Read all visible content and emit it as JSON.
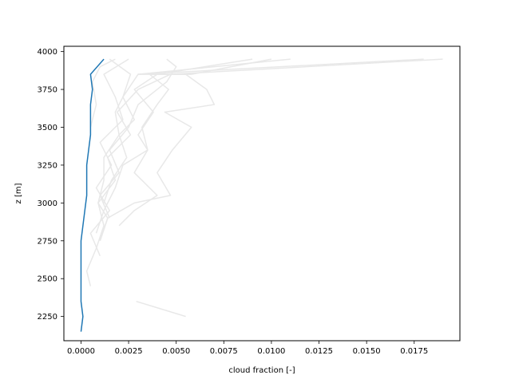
{
  "chart_data": {
    "type": "line",
    "title": "",
    "xlabel": "cloud fraction [-]",
    "ylabel": "z [m]",
    "xlim": [
      -0.0009,
      0.0199
    ],
    "ylim": [
      2090,
      4035
    ],
    "xticks": [
      0.0,
      0.0025,
      0.005,
      0.0075,
      0.01,
      0.0125,
      0.015,
      0.0175
    ],
    "xtick_labels": [
      "0.0000",
      "0.0025",
      "0.0050",
      "0.0075",
      "0.0100",
      "0.0125",
      "0.0150",
      "0.0175"
    ],
    "yticks": [
      2250,
      2500,
      2750,
      3000,
      3250,
      3500,
      3750,
      4000
    ],
    "ytick_labels": [
      "2250",
      "2500",
      "2750",
      "3000",
      "3250",
      "3500",
      "3750",
      "4000"
    ],
    "grid": false,
    "legend": "none",
    "colors": {
      "mean": "#1f77b4",
      "members": "#e8e8e8"
    },
    "series": [
      {
        "role": "member",
        "points": [
          [
            0.0055,
            2250
          ],
          [
            0.0029,
            2350
          ]
        ]
      },
      {
        "role": "member",
        "points": [
          [
            0.0005,
            2450
          ],
          [
            0.0003,
            2550
          ],
          [
            0.0008,
            2700
          ],
          [
            0.0012,
            2850
          ],
          [
            0.0009,
            3000
          ],
          [
            0.0018,
            3150
          ],
          [
            0.0014,
            3300
          ],
          [
            0.0026,
            3450
          ],
          [
            0.0019,
            3600
          ],
          [
            0.003,
            3750
          ],
          [
            0.0047,
            3850
          ],
          [
            0.019,
            3950
          ]
        ]
      },
      {
        "role": "member",
        "points": [
          [
            0.001,
            2750
          ],
          [
            0.0014,
            2900
          ],
          [
            0.0028,
            3000
          ],
          [
            0.0047,
            3050
          ],
          [
            0.004,
            3200
          ],
          [
            0.0048,
            3350
          ],
          [
            0.0058,
            3500
          ],
          [
            0.0044,
            3600
          ],
          [
            0.007,
            3650
          ],
          [
            0.0066,
            3750
          ],
          [
            0.0055,
            3850
          ],
          [
            0.003,
            3850
          ],
          [
            0.011,
            3950
          ]
        ]
      },
      {
        "role": "member",
        "points": [
          [
            0.001,
            2750
          ],
          [
            0.0014,
            2900
          ],
          [
            0.0009,
            3000
          ],
          [
            0.0012,
            3150
          ],
          [
            0.0012,
            3300
          ],
          [
            0.002,
            3450
          ],
          [
            0.0018,
            3600
          ],
          [
            0.0022,
            3700
          ],
          [
            0.003,
            3850
          ],
          [
            0.018,
            3950
          ]
        ]
      },
      {
        "role": "member",
        "points": [
          [
            0.002,
            2850
          ],
          [
            0.0028,
            2950
          ],
          [
            0.004,
            3050
          ],
          [
            0.0028,
            3200
          ],
          [
            0.0035,
            3350
          ],
          [
            0.0032,
            3500
          ],
          [
            0.004,
            3650
          ],
          [
            0.0046,
            3750
          ],
          [
            0.0036,
            3850
          ],
          [
            0.0058,
            3850
          ],
          [
            0.01,
            3950
          ]
        ]
      },
      {
        "role": "member",
        "points": [
          [
            0.001,
            2650
          ],
          [
            0.0005,
            2800
          ],
          [
            0.0015,
            2950
          ],
          [
            0.0008,
            3100
          ],
          [
            0.0016,
            3250
          ],
          [
            0.001,
            3400
          ],
          [
            0.0022,
            3550
          ],
          [
            0.0018,
            3700
          ],
          [
            0.0012,
            3850
          ],
          [
            0.0025,
            3950
          ]
        ]
      },
      {
        "role": "member",
        "points": [
          [
            0.0015,
            2900
          ],
          [
            0.001,
            3050
          ],
          [
            0.002,
            3200
          ],
          [
            0.0015,
            3350
          ],
          [
            0.0025,
            3500
          ],
          [
            0.003,
            3650
          ],
          [
            0.0045,
            3800
          ],
          [
            0.005,
            3900
          ],
          [
            0.0045,
            3950
          ]
        ]
      },
      {
        "role": "member",
        "points": [
          [
            0.0008,
            2800
          ],
          [
            0.0012,
            2950
          ],
          [
            0.0018,
            3100
          ],
          [
            0.0022,
            3250
          ],
          [
            0.0035,
            3350
          ],
          [
            0.003,
            3450
          ],
          [
            0.0038,
            3600
          ],
          [
            0.0028,
            3750
          ],
          [
            0.004,
            3850
          ],
          [
            0.009,
            3950
          ]
        ]
      },
      {
        "role": "member",
        "points": [
          [
            0.0005,
            3500
          ],
          [
            0.0008,
            3650
          ],
          [
            0.0006,
            3800
          ],
          [
            0.001,
            3900
          ],
          [
            0.0018,
            3950
          ]
        ]
      },
      {
        "role": "member",
        "points": [
          [
            0.0012,
            3000
          ],
          [
            0.0016,
            3150
          ],
          [
            0.0024,
            3300
          ],
          [
            0.002,
            3450
          ],
          [
            0.0028,
            3550
          ],
          [
            0.0022,
            3700
          ],
          [
            0.0026,
            3850
          ],
          [
            0.0015,
            3950
          ]
        ]
      },
      {
        "role": "mean",
        "points": [
          [
            0.0,
            2150
          ],
          [
            0.0001,
            2250
          ],
          [
            0.0,
            2350
          ],
          [
            0.0,
            2450
          ],
          [
            0.0,
            2550
          ],
          [
            0.0,
            2650
          ],
          [
            0.0,
            2750
          ],
          [
            0.0001,
            2850
          ],
          [
            0.0002,
            2950
          ],
          [
            0.0003,
            3050
          ],
          [
            0.0003,
            3150
          ],
          [
            0.0003,
            3250
          ],
          [
            0.0004,
            3350
          ],
          [
            0.0005,
            3450
          ],
          [
            0.0005,
            3550
          ],
          [
            0.0005,
            3650
          ],
          [
            0.0006,
            3750
          ],
          [
            0.0005,
            3850
          ],
          [
            0.0012,
            3950
          ]
        ]
      }
    ]
  }
}
